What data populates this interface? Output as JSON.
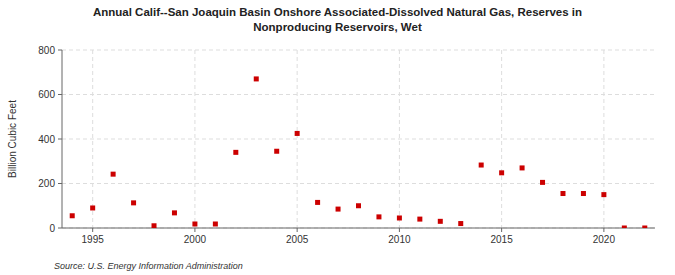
{
  "chart_data": {
    "type": "scatter",
    "title": "Annual Calif--San Joaquin Basin Onshore Associated-Dissolved Natural Gas, Reserves in\nNonproducing Reservoirs, Wet",
    "y_label": "Billion Cubic Feet",
    "annotations": [
      "Source: U.S. Energy Information Administration"
    ],
    "x": [
      1994,
      1995,
      1996,
      1997,
      1998,
      1999,
      2000,
      2001,
      2002,
      2003,
      2004,
      2005,
      2006,
      2007,
      2008,
      2009,
      2010,
      2011,
      2012,
      2013,
      2014,
      2015,
      2016,
      2017,
      2018,
      2019,
      2020,
      2021,
      2022
    ],
    "values": [
      55,
      90,
      242,
      113,
      10,
      68,
      18,
      18,
      340,
      670,
      345,
      425,
      115,
      85,
      100,
      50,
      45,
      40,
      30,
      20,
      283,
      248,
      270,
      205,
      155,
      155,
      150,
      0,
      0
    ],
    "color": "#cc0000",
    "marker": "square",
    "xlim": [
      1993.5,
      2022.5
    ],
    "ylim": [
      0,
      800
    ],
    "xticks": [
      1995,
      2000,
      2005,
      2010,
      2015,
      2020
    ],
    "yticks": [
      0,
      200,
      400,
      600,
      800
    ],
    "grid": true
  }
}
